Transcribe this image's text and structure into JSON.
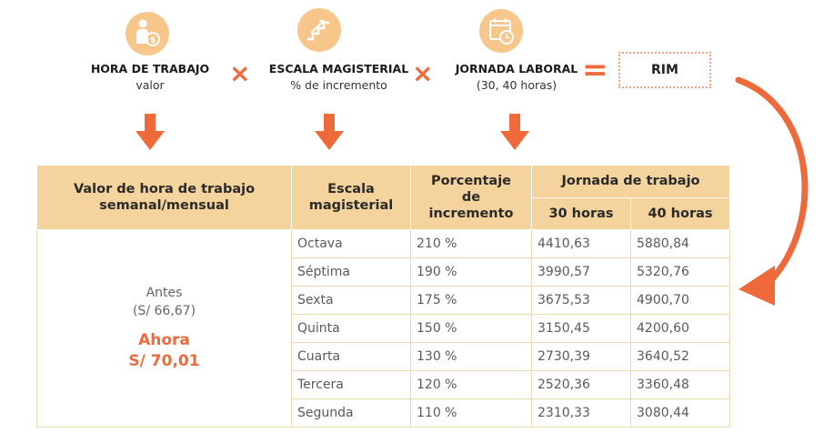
{
  "formula": {
    "hora": {
      "title": "HORA DE TRABAJO",
      "sub": "valor",
      "icon": "person-money-icon"
    },
    "escala": {
      "title": "ESCALA MAGISTERIAL",
      "sub": "% de incremento",
      "icon": "stairs-icon"
    },
    "jornada": {
      "title": "JORNADA LABORAL",
      "sub": "(30, 40 horas)",
      "icon": "calendar-clock-icon"
    },
    "times": "×",
    "equals": "=",
    "result": "RIM"
  },
  "colors": {
    "accent": "#ee6a3a",
    "icon_bg": "#f7c68b",
    "header_bg": "#f5d39c",
    "border": "#f0d9b2"
  },
  "table": {
    "headers": {
      "valor": "Valor de hora de trabajo semanal/mensual",
      "escala": "Escala magisterial",
      "porcentaje": "Porcentaje de incremento",
      "jornada": "Jornada de trabajo",
      "h30": "30 horas",
      "h40": "40 horas"
    },
    "left": {
      "antes_label": "Antes",
      "antes_value": "(S/ 66,67)",
      "ahora_label": "Ahora",
      "ahora_value": "S/ 70,01"
    },
    "rows": [
      {
        "escala": "Octava",
        "pct": "210 %",
        "h30": "4410,63",
        "h40": "5880,84"
      },
      {
        "escala": "Séptima",
        "pct": "190 %",
        "h30": "3990,57",
        "h40": "5320,76"
      },
      {
        "escala": "Sexta",
        "pct": "175 %",
        "h30": "3675,53",
        "h40": "4900,70"
      },
      {
        "escala": "Quinta",
        "pct": "150 %",
        "h30": "3150,45",
        "h40": "4200,60"
      },
      {
        "escala": "Cuarta",
        "pct": "130 %",
        "h30": "2730,39",
        "h40": "3640,52"
      },
      {
        "escala": "Tercera",
        "pct": "120 %",
        "h30": "2520,36",
        "h40": "3360,48"
      },
      {
        "escala": "Segunda",
        "pct": "110 %",
        "h30": "2310,33",
        "h40": "3080,44"
      }
    ]
  }
}
